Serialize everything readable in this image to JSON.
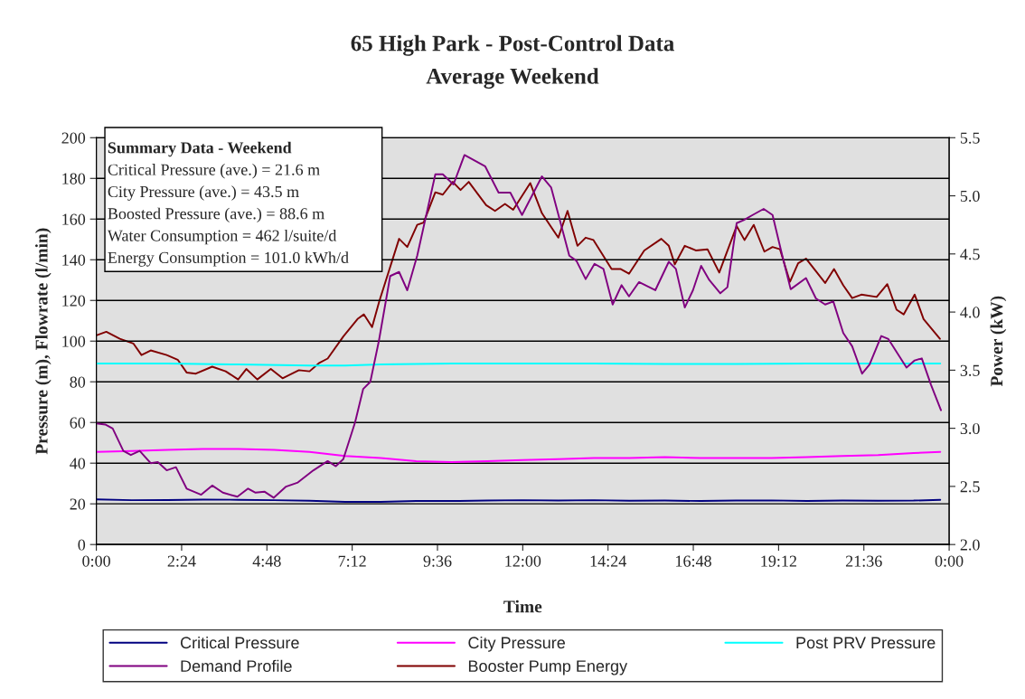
{
  "chart_data": {
    "type": "line",
    "title": "65 High Park - Post-Control Data",
    "subtitle": "Average Weekend",
    "xlabel": "Time",
    "ylabel": "Pressure (m), Flowrate (l/min)",
    "y2label": "Power (kW)",
    "annotations": [
      "Summary Data - Weekend",
      "Critical Pressure (ave.) = 21.6 m",
      "City Pressure (ave.) = 43.5 m",
      "Boosted Pressure (ave.) = 88.6 m",
      "Water Consumption = 462 l/suite/d",
      "Energy Consumption = 101.0 kWh/d"
    ],
    "xlim": [
      0,
      24
    ],
    "xticks": [
      {
        "value": 0,
        "label": "0:00"
      },
      {
        "value": 2.4,
        "label": "2:24"
      },
      {
        "value": 4.8,
        "label": "4:48"
      },
      {
        "value": 7.2,
        "label": "7:12"
      },
      {
        "value": 9.6,
        "label": "9:36"
      },
      {
        "value": 12,
        "label": "12:00"
      },
      {
        "value": 14.4,
        "label": "14:24"
      },
      {
        "value": 16.8,
        "label": "16:48"
      },
      {
        "value": 19.2,
        "label": "19:12"
      },
      {
        "value": 21.6,
        "label": "21:36"
      },
      {
        "value": 24,
        "label": "0:00"
      }
    ],
    "ylim": [
      0,
      200
    ],
    "yticks": [
      0,
      20,
      40,
      60,
      80,
      100,
      120,
      140,
      160,
      180,
      200
    ],
    "y2lim": [
      2,
      5.5
    ],
    "y2ticks": [
      {
        "value": 2,
        "label": "2.0"
      },
      {
        "value": 2.5,
        "label": "2.5"
      },
      {
        "value": 3,
        "label": "3.0"
      },
      {
        "value": 3.5,
        "label": "3.5"
      },
      {
        "value": 4,
        "label": "4.0"
      },
      {
        "value": 4.5,
        "label": "4.5"
      },
      {
        "value": 5,
        "label": "5.0"
      },
      {
        "value": 5.5,
        "label": "5.5"
      }
    ],
    "grid": "y",
    "legend": "bottom",
    "marker": "none",
    "line_style": "solid",
    "series": [
      {
        "name": "Critical Pressure",
        "color": "#000080",
        "x": [
          0,
          1,
          2,
          3,
          4,
          5,
          6,
          7,
          8,
          9,
          10,
          11,
          12,
          13,
          14,
          15,
          16,
          17,
          18,
          19,
          20,
          21,
          22,
          23,
          23.75
        ],
        "values": [
          22.2,
          21.8,
          21.9,
          22.1,
          22,
          21.8,
          21.5,
          21,
          21,
          21.4,
          21.4,
          21.6,
          21.8,
          21.6,
          21.8,
          21.5,
          21.6,
          21.4,
          21.6,
          21.7,
          21.4,
          21.6,
          21.5,
          21.6,
          22
        ]
      },
      {
        "name": "City Pressure",
        "color": "#ff00ff",
        "x": [
          0,
          1,
          2,
          3,
          4,
          5,
          6,
          7,
          8,
          9,
          10,
          11,
          12,
          13,
          14,
          15,
          16,
          17,
          18,
          19,
          20,
          21,
          22,
          23,
          23.75
        ],
        "values": [
          45.5,
          46,
          46.5,
          47,
          47,
          46.5,
          45.5,
          43.5,
          42.5,
          41,
          40.5,
          41,
          41.5,
          42,
          42.5,
          42.5,
          43,
          42.5,
          42.5,
          42.5,
          43,
          43.5,
          44,
          45,
          45.5
        ]
      },
      {
        "name": "Post PRV Pressure",
        "color": "#00ffff",
        "x": [
          0,
          2,
          4,
          6,
          7,
          8,
          10,
          12,
          14,
          16,
          18,
          20,
          22,
          23.75
        ],
        "values": [
          89,
          89,
          88.5,
          88,
          88,
          88.5,
          89,
          89,
          89,
          88.8,
          88.8,
          89,
          89,
          89
        ]
      },
      {
        "name": "Demand Profile",
        "color": "#800080",
        "x": [
          0,
          0.25,
          0.46,
          0.76,
          0.97,
          1.22,
          1.53,
          1.73,
          1.98,
          2.24,
          2.54,
          2.95,
          3.26,
          3.56,
          3.97,
          4.27,
          4.48,
          4.73,
          4.99,
          5.34,
          5.67,
          6.11,
          6.51,
          6.74,
          6.95,
          7.28,
          7.51,
          7.71,
          7.95,
          8.27,
          8.52,
          8.75,
          9.03,
          9.54,
          9.75,
          10.05,
          10.36,
          10.94,
          11.32,
          11.65,
          11.98,
          12.54,
          12.8,
          13.31,
          13.51,
          13.77,
          14.02,
          14.27,
          14.53,
          14.78,
          14.99,
          15.27,
          15.73,
          16.11,
          16.31,
          16.56,
          16.79,
          17.02,
          17.25,
          17.56,
          17.76,
          18.02,
          18.22,
          18.47,
          18.78,
          19.03,
          19.29,
          19.54,
          19.97,
          20.25,
          20.51,
          20.74,
          21.02,
          21.27,
          21.55,
          21.76,
          22.09,
          22.29,
          22.8,
          23.03,
          23.23,
          23.49,
          23.77
        ],
        "values": [
          59.5,
          59,
          57,
          46,
          44,
          46,
          40,
          40.5,
          36.5,
          38,
          27.5,
          24.5,
          29,
          25.5,
          23.5,
          27.5,
          25.5,
          26,
          23,
          28.5,
          30.5,
          36.5,
          41,
          38.5,
          42,
          60,
          76.5,
          80,
          100,
          132,
          134,
          125,
          142,
          182,
          182,
          177,
          191.5,
          186,
          173,
          173,
          162,
          181,
          175.5,
          142,
          139.5,
          130.5,
          138,
          135.5,
          118,
          127.5,
          122,
          129,
          125,
          139,
          135.5,
          116.5,
          125,
          137,
          130,
          123.5,
          126.5,
          158,
          159.5,
          162,
          165,
          162,
          143,
          125.5,
          131,
          121,
          118,
          119.5,
          104,
          97.5,
          84,
          88.5,
          102.5,
          101,
          87,
          90.5,
          91.5,
          78.5,
          66
        ]
      },
      {
        "name": "Booster Pump Energy",
        "color": "#800000",
        "axis": "y2",
        "x": [
          0,
          0.28,
          0.66,
          1.04,
          1.27,
          1.53,
          1.98,
          2.29,
          2.54,
          2.8,
          3.26,
          3.64,
          3.99,
          4.22,
          4.53,
          4.91,
          5.24,
          5.7,
          6.0,
          6.26,
          6.51,
          6.95,
          7.35,
          7.53,
          7.76,
          7.96,
          8.52,
          8.75,
          9.03,
          9.21,
          9.54,
          9.75,
          10.03,
          10.25,
          10.48,
          10.97,
          11.22,
          11.5,
          11.73,
          12.21,
          12.54,
          13.0,
          13.26,
          13.54,
          13.77,
          13.99,
          14.5,
          14.76,
          14.99,
          15.42,
          15.9,
          16.11,
          16.28,
          16.56,
          16.87,
          17.2,
          17.53,
          18.02,
          18.24,
          18.5,
          18.8,
          19.03,
          19.24,
          19.52,
          19.75,
          19.97,
          20.51,
          20.76,
          21.02,
          21.27,
          21.53,
          21.96,
          22.26,
          22.52,
          22.72,
          23.03,
          23.28,
          23.74
        ],
        "values": [
          3.8,
          3.83,
          3.77,
          3.73,
          3.63,
          3.67,
          3.63,
          3.59,
          3.48,
          3.47,
          3.53,
          3.49,
          3.42,
          3.51,
          3.42,
          3.51,
          3.43,
          3.5,
          3.49,
          3.56,
          3.6,
          3.79,
          3.94,
          3.98,
          3.87,
          4.09,
          4.63,
          4.56,
          4.75,
          4.77,
          5.03,
          5.01,
          5.12,
          5.05,
          5.12,
          4.92,
          4.87,
          4.93,
          4.88,
          5.11,
          4.85,
          4.64,
          4.87,
          4.57,
          4.64,
          4.62,
          4.37,
          4.37,
          4.33,
          4.53,
          4.63,
          4.57,
          4.41,
          4.57,
          4.53,
          4.54,
          4.34,
          4.74,
          4.62,
          4.75,
          4.52,
          4.56,
          4.54,
          4.26,
          4.42,
          4.46,
          4.25,
          4.37,
          4.23,
          4.12,
          4.15,
          4.13,
          4.24,
          4.02,
          3.98,
          4.15,
          3.94,
          3.77
        ]
      }
    ]
  }
}
